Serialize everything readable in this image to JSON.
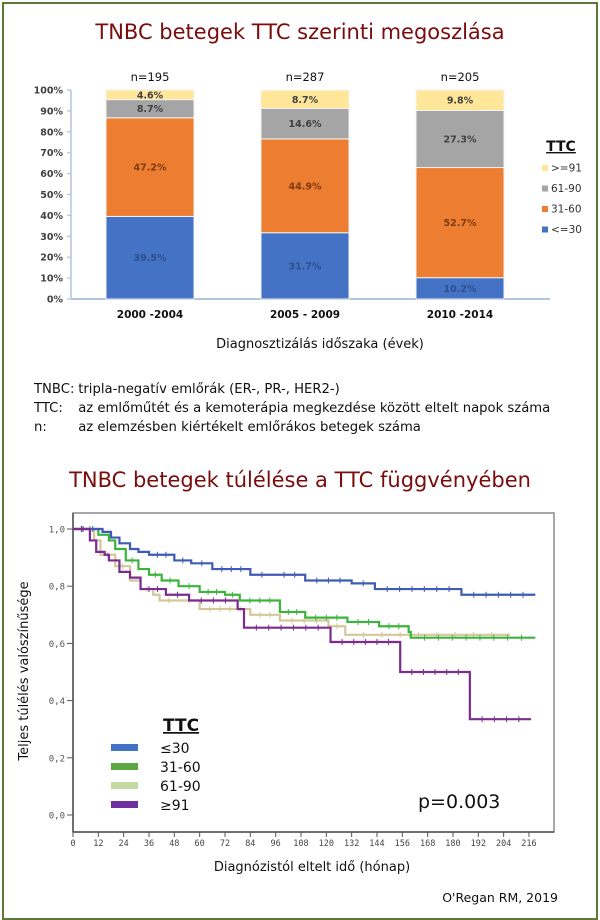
{
  "page": {
    "citation": "O'Regan RM, 2019"
  },
  "notes": [
    {
      "key": "TNBC:",
      "text": "tripla-negatív emlőrák (ER-, PR-, HER2-)"
    },
    {
      "key": "TTC:",
      "text": "az emlőműtét és a kemoterápia megkezdése között eltelt napok száma"
    },
    {
      "key": "n:",
      "text": "az elemzésben kiértékelt emlőrákos betegek száma"
    }
  ],
  "chart_data": [
    {
      "type": "bar",
      "stacked": true,
      "title": "TNBC betegek TTC szerinti megoszlása",
      "xlabel": "Diagnosztizálás időszaka (évek)",
      "ylabel": "",
      "ylim": [
        0,
        100
      ],
      "yticks": [
        "0%",
        "10%",
        "20%",
        "30%",
        "40%",
        "50%",
        "60%",
        "70%",
        "80%",
        "90%",
        "100%"
      ],
      "categories": [
        "2000 -2004",
        "2005 - 2009",
        "2010 -2014"
      ],
      "n_labels": [
        "n=195",
        "n=287",
        "n=205"
      ],
      "legend_title": "TTC",
      "legend_position": "right",
      "series": [
        {
          "name": "<=30",
          "color": "#4472c4",
          "values": [
            39.5,
            31.7,
            10.2
          ],
          "labels": [
            "39.5%",
            "31.7%",
            "10.2%"
          ]
        },
        {
          "name": "31-60",
          "color": "#ed7d31",
          "values": [
            47.2,
            44.9,
            52.7
          ],
          "labels": [
            "47.2%",
            "44.9%",
            "52.7%"
          ]
        },
        {
          "name": "61-90",
          "color": "#a5a5a5",
          "values": [
            8.7,
            14.6,
            27.3
          ],
          "labels": [
            "8.7%",
            "14.6%",
            "27.3%"
          ]
        },
        {
          "name": ">=91",
          "color": "#ffe699",
          "values": [
            4.6,
            8.7,
            9.8
          ],
          "labels": [
            "4.6%",
            "8.7%",
            "9.8%"
          ]
        }
      ],
      "legend_order": [
        ">=91",
        "61-90",
        "31-60",
        "<=30"
      ]
    },
    {
      "type": "line",
      "subtype": "kaplan-meier",
      "title": "TNBC betegek túlélése a TTC függvényében",
      "xlabel": "Diagnózistól eltelt idő (hónap)",
      "ylabel": "Teljes túlélés valószínűsége",
      "xlim": [
        0,
        222
      ],
      "ylim": [
        -0.05,
        1.05
      ],
      "xticks": [
        0,
        12,
        24,
        36,
        48,
        60,
        72,
        84,
        96,
        108,
        120,
        132,
        144,
        156,
        168,
        180,
        192,
        204,
        216
      ],
      "yticks": [
        0.0,
        0.2,
        0.4,
        0.6,
        0.8,
        1.0
      ],
      "ytick_labels": [
        "0,0",
        "0,2",
        "0,4",
        "0,6",
        "0,8",
        "1,0"
      ],
      "annotation": "p=0.003",
      "legend_title": "TTC",
      "legend_position": "bottom-left",
      "series": [
        {
          "name": "≤30",
          "color": "#3f5bb5",
          "x": [
            0,
            14,
            18,
            22,
            27,
            31,
            36,
            48,
            56,
            66,
            84,
            95,
            110,
            132,
            143,
            184,
            219
          ],
          "y": [
            1.0,
            0.99,
            0.97,
            0.95,
            0.93,
            0.92,
            0.91,
            0.89,
            0.88,
            0.86,
            0.84,
            0.84,
            0.82,
            0.81,
            0.79,
            0.77,
            0.77
          ]
        },
        {
          "name": "31-60",
          "color": "#3cb43c",
          "x": [
            0,
            12,
            17,
            20,
            25,
            31,
            36,
            42,
            50,
            60,
            72,
            79,
            98,
            110,
            130,
            145,
            159,
            160,
            219
          ],
          "y": [
            1.0,
            0.98,
            0.96,
            0.93,
            0.89,
            0.86,
            0.84,
            0.82,
            0.8,
            0.78,
            0.77,
            0.75,
            0.71,
            0.69,
            0.675,
            0.66,
            0.64,
            0.62,
            0.62
          ]
        },
        {
          "name": "61-90",
          "color": "#d2c89b",
          "x": [
            0,
            10,
            13,
            20,
            27,
            32,
            38,
            41,
            50,
            60,
            84,
            98,
            121,
            129,
            207
          ],
          "y": [
            1.0,
            0.96,
            0.91,
            0.87,
            0.82,
            0.79,
            0.77,
            0.75,
            0.75,
            0.72,
            0.7,
            0.68,
            0.66,
            0.63,
            0.63
          ]
        },
        {
          "name": "≥91",
          "color": "#7b2c8e",
          "x": [
            0,
            8,
            11,
            15,
            17,
            22,
            27,
            32,
            44,
            55,
            78,
            81,
            122,
            155,
            188,
            217
          ],
          "y": [
            1.0,
            0.96,
            0.92,
            0.91,
            0.89,
            0.85,
            0.83,
            0.79,
            0.77,
            0.75,
            0.72,
            0.655,
            0.605,
            0.5,
            0.335,
            0.335
          ]
        }
      ]
    }
  ]
}
